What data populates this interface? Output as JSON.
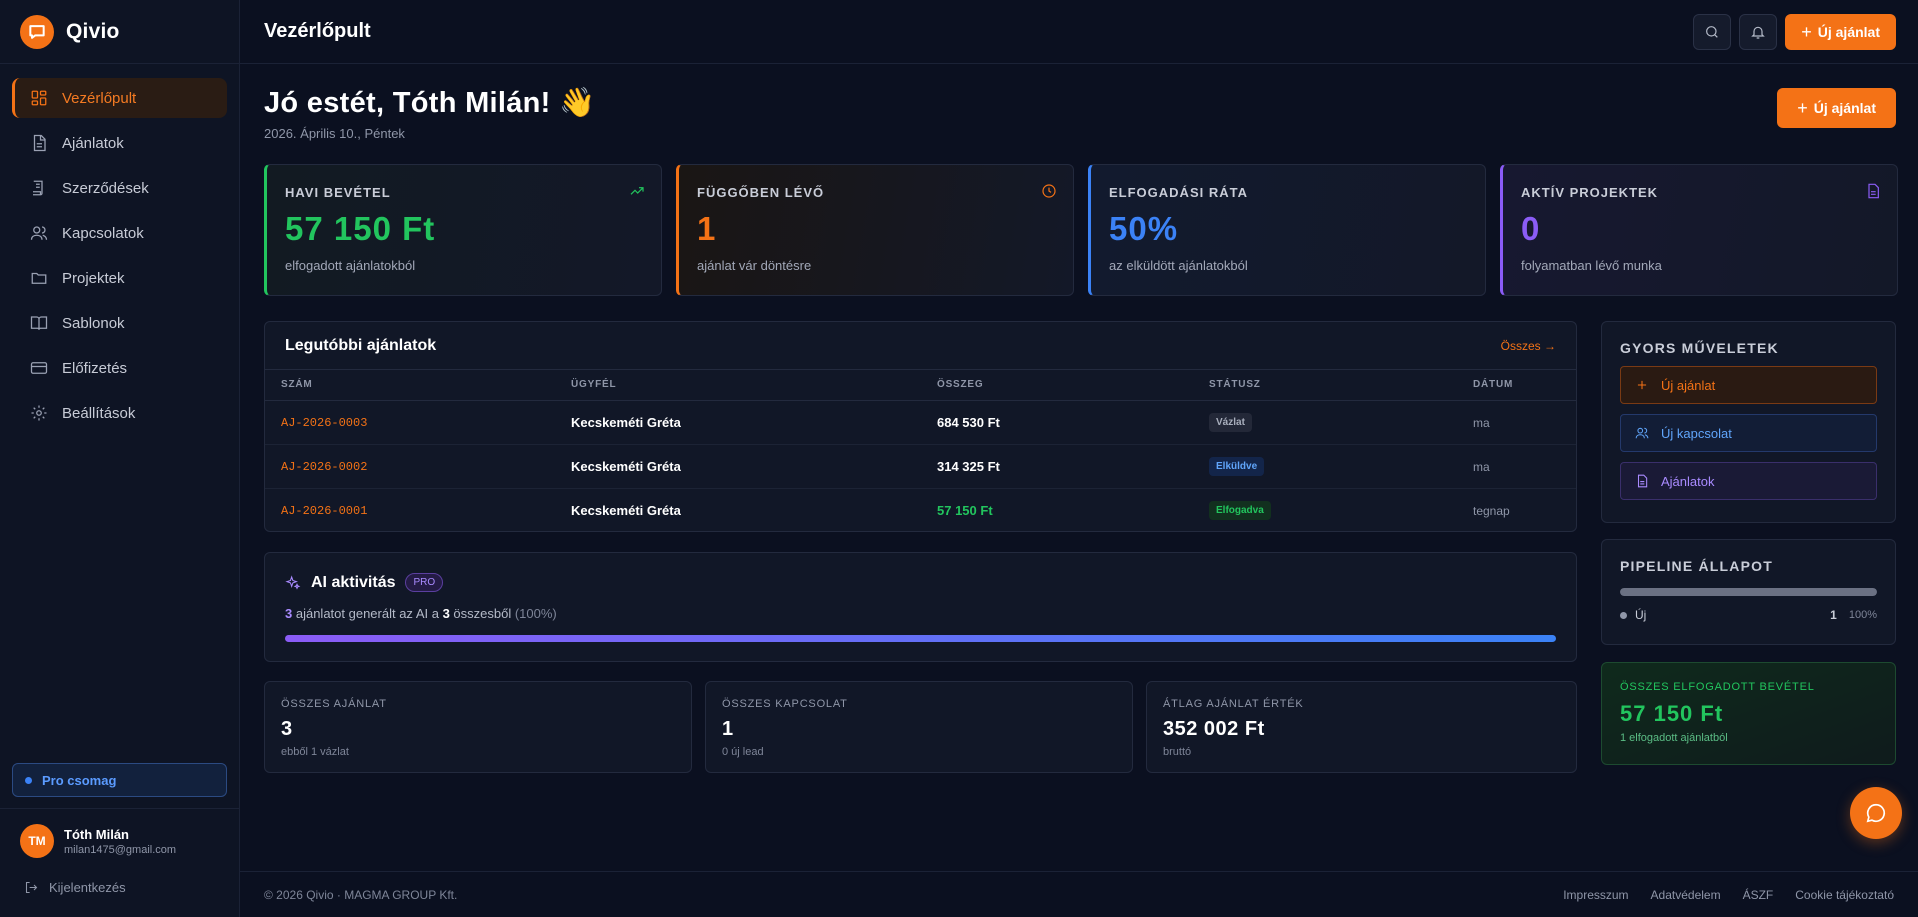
{
  "brand": {
    "name": "Qivio"
  },
  "sidebar": {
    "items": [
      {
        "label": "Vezérlőpult",
        "icon": "dashboard-icon",
        "active": true
      },
      {
        "label": "Ajánlatok",
        "icon": "document-icon"
      },
      {
        "label": "Szerződések",
        "icon": "contract-icon"
      },
      {
        "label": "Kapcsolatok",
        "icon": "users-icon"
      },
      {
        "label": "Projektek",
        "icon": "folder-icon"
      },
      {
        "label": "Sablonok",
        "icon": "book-icon"
      },
      {
        "label": "Előfizetés",
        "icon": "card-icon"
      },
      {
        "label": "Beállítások",
        "icon": "gear-icon"
      }
    ],
    "plan": "Pro csomag",
    "user": {
      "initials": "TM",
      "name": "Tóth Milán",
      "email": "milan1475@gmail.com"
    },
    "logout": "Kijelentkezés"
  },
  "header": {
    "title": "Vezérlőpult",
    "new_offer": "Új ajánlat"
  },
  "greeting": {
    "title": "Jó estét, Tóth Milán! 👋",
    "date": "2026. Április 10., Péntek",
    "new_offer": "Új ajánlat"
  },
  "stats": [
    {
      "label": "HAVI BEVÉTEL",
      "value": "57 150 Ft",
      "sub": "elfogadott ajánlatokból",
      "color": "#22c55e",
      "icon": "trend-up-icon"
    },
    {
      "label": "FÜGGŐBEN LÉVŐ",
      "value": "1",
      "sub": "ajánlat vár döntésre",
      "color": "#f47216",
      "icon": "clock-icon"
    },
    {
      "label": "ELFOGADÁSI RÁTA",
      "value": "50%",
      "sub": "az elküldött ajánlatokból",
      "color": "#3b82f6",
      "icon": ""
    },
    {
      "label": "AKTÍV PROJEKTEK",
      "value": "0",
      "sub": "folyamatban lévő munka",
      "color": "#8b5cf6",
      "icon": "file-icon"
    }
  ],
  "recent": {
    "title": "Legutóbbi ajánlatok",
    "all_link": "Összes →",
    "columns": [
      "SZÁM",
      "ÜGYFÉL",
      "ÖSSZEG",
      "STÁTUSZ",
      "DÁTUM"
    ],
    "rows": [
      {
        "number": "AJ-2026-0003",
        "client": "Kecskeméti Gréta",
        "amount": "684 530 Ft",
        "status": "Vázlat",
        "date": "ma"
      },
      {
        "number": "AJ-2026-0002",
        "client": "Kecskeméti Gréta",
        "amount": "314 325 Ft",
        "status": "Elküldve",
        "date": "ma"
      },
      {
        "number": "AJ-2026-0001",
        "client": "Kecskeméti Gréta",
        "amount": "57 150 Ft",
        "status": "Elfogadva",
        "date": "tegnap"
      }
    ]
  },
  "ai": {
    "title": "AI aktivitás",
    "tag": "PRO",
    "generated": "3",
    "text_mid": " ajánlatot generált az AI a ",
    "total": "3",
    "text_end": " összesből ",
    "pct": "(100%)",
    "progress": 1.0
  },
  "mini": [
    {
      "label": "ÖSSZES AJÁNLAT",
      "value": "3",
      "sub": "ebből 1 vázlat"
    },
    {
      "label": "ÖSSZES KAPCSOLAT",
      "value": "1",
      "sub": "0 új lead"
    },
    {
      "label": "ÁTLAG AJÁNLAT ÉRTÉK",
      "value": "352 002 Ft",
      "sub": "bruttó"
    }
  ],
  "quick": {
    "title": "GYORS MŰVELETEK",
    "buttons": [
      "Új ajánlat",
      "Új kapcsolat",
      "Ajánlatok"
    ]
  },
  "pipeline": {
    "title": "PIPELINE ÁLLAPOT",
    "stages": [
      {
        "label": "Új",
        "count": "1",
        "pct": "100%",
        "fraction": 1.0
      }
    ]
  },
  "revenue": {
    "label": "ÖSSZES ELFOGADOTT BEVÉTEL",
    "value": "57 150 Ft",
    "sub": "1 elfogadott ajánlatból"
  },
  "footer": {
    "copyright": "© 2026 Qivio · MAGMA GROUP Kft.",
    "links": [
      "Impresszum",
      "Adatvédelem",
      "ÁSZF",
      "Cookie tájékoztató"
    ]
  }
}
